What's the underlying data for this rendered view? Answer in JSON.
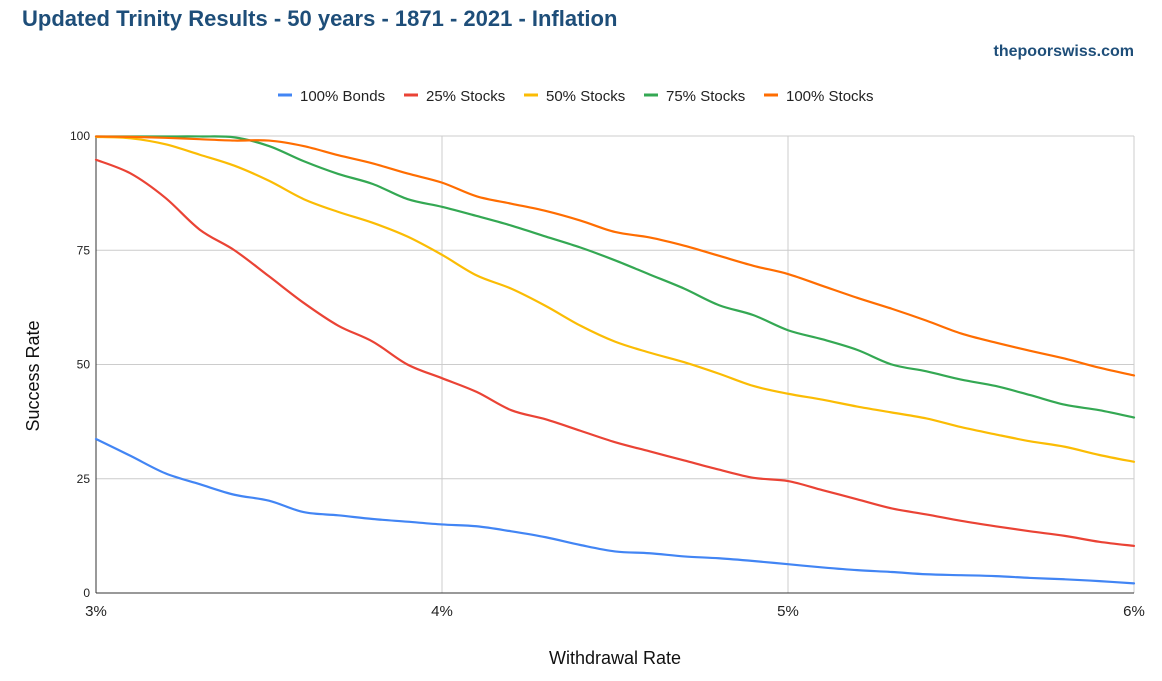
{
  "title": "Updated Trinity Results - 50 years - 1871 - 2021 - Inflation",
  "brand": "thepoorswiss.com",
  "chart_data": {
    "type": "line",
    "title": "Updated Trinity Results - 50 years - 1871 - 2021 - Inflation",
    "xlabel": "Withdrawal Rate",
    "ylabel": "Success Rate",
    "xlim": [
      3,
      6
    ],
    "ylim": [
      0,
      100
    ],
    "x_ticks": [
      {
        "value": 3,
        "label": "3%"
      },
      {
        "value": 4,
        "label": "4%"
      },
      {
        "value": 5,
        "label": "5%"
      },
      {
        "value": 6,
        "label": "6%"
      }
    ],
    "y_ticks": [
      {
        "value": 0,
        "label": "0"
      },
      {
        "value": 25,
        "label": "25"
      },
      {
        "value": 50,
        "label": "50"
      },
      {
        "value": 75,
        "label": "75"
      },
      {
        "value": 100,
        "label": "100"
      }
    ],
    "grid": true,
    "legend_position": "top",
    "x": [
      3.0,
      3.1,
      3.2,
      3.3,
      3.4,
      3.5,
      3.6,
      3.7,
      3.8,
      3.9,
      4.0,
      4.1,
      4.2,
      4.3,
      4.4,
      4.5,
      4.6,
      4.7,
      4.8,
      4.9,
      5.0,
      5.1,
      5.2,
      5.3,
      5.4,
      5.5,
      5.6,
      5.7,
      5.8,
      5.9,
      6.0
    ],
    "series": [
      {
        "name": "100% Bonds",
        "color": "#4285f4",
        "values": [
          33.7,
          30.0,
          26.2,
          23.8,
          21.5,
          20.2,
          17.7,
          17.0,
          16.2,
          15.6,
          15.0,
          14.6,
          13.5,
          12.2,
          10.5,
          9.1,
          8.7,
          8.0,
          7.6,
          7.0,
          6.3,
          5.6,
          5.0,
          4.6,
          4.1,
          3.9,
          3.7,
          3.3,
          3.0,
          2.6,
          2.1
        ]
      },
      {
        "name": "25% Stocks",
        "color": "#ea4335",
        "values": [
          94.8,
          91.8,
          86.5,
          79.5,
          75.0,
          69.3,
          63.5,
          58.5,
          55.0,
          50.0,
          47.0,
          44.0,
          40.0,
          38.0,
          35.5,
          33.0,
          31.0,
          29.0,
          27.0,
          25.2,
          24.5,
          22.5,
          20.5,
          18.5,
          17.2,
          15.8,
          14.6,
          13.5,
          12.5,
          11.2,
          10.3
        ]
      },
      {
        "name": "50% Stocks",
        "color": "#fbbc04",
        "values": [
          99.8,
          99.5,
          98.2,
          95.9,
          93.5,
          90.2,
          86.2,
          83.4,
          81.0,
          78.0,
          74.0,
          69.5,
          66.6,
          62.8,
          58.5,
          55.0,
          52.6,
          50.5,
          48.0,
          45.3,
          43.6,
          42.3,
          40.8,
          39.5,
          38.2,
          36.3,
          34.7,
          33.2,
          32.0,
          30.2,
          28.7
        ]
      },
      {
        "name": "75% Stocks",
        "color": "#34a853",
        "values": [
          99.9,
          99.9,
          99.9,
          99.9,
          99.7,
          97.8,
          94.5,
          91.7,
          89.5,
          86.2,
          84.5,
          82.5,
          80.4,
          78.0,
          75.6,
          72.8,
          69.7,
          66.6,
          63.0,
          60.8,
          57.5,
          55.5,
          53.2,
          50.0,
          48.5,
          46.7,
          45.3,
          43.3,
          41.2,
          40.0,
          38.4
        ]
      },
      {
        "name": "100% Stocks",
        "color": "#ff6d01",
        "values": [
          99.9,
          99.8,
          99.6,
          99.3,
          99.0,
          99.0,
          97.8,
          95.8,
          94.0,
          91.8,
          89.8,
          86.8,
          85.2,
          83.6,
          81.5,
          79.0,
          77.8,
          76.0,
          73.8,
          71.6,
          69.8,
          67.2,
          64.6,
          62.2,
          59.6,
          56.8,
          54.8,
          53.0,
          51.3,
          49.3,
          47.6
        ]
      }
    ]
  }
}
